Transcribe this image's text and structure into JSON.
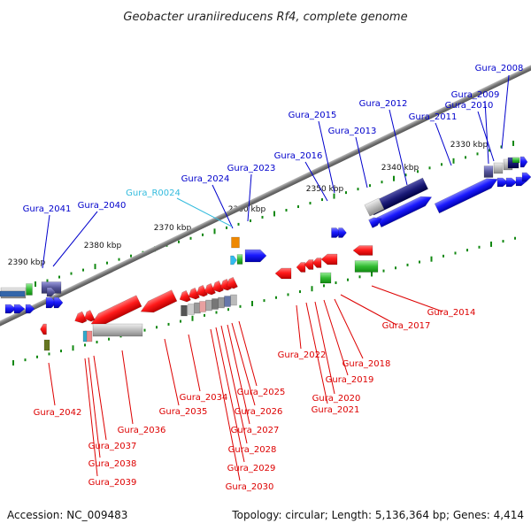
{
  "title": "Geobacter uraniireducens Rf4, complete genome",
  "footer": {
    "accession": "Accession: NC_009483",
    "summary": "Topology: circular; Length: 5,136,364 bp; Genes: 4,414"
  },
  "colors": {
    "forward_label": "#0000cc",
    "reverse_label": "#dd0000",
    "rna_label": "#33bbdd",
    "backbone": "#888888",
    "tick": "#118811"
  },
  "scale_labels": [
    "2330 kbp",
    "2340 kbp",
    "2350 kbp",
    "2360 kbp",
    "2370 kbp",
    "2380 kbp",
    "2390 kbp"
  ],
  "forward_genes": [
    "Gura_2008",
    "Gura_2009",
    "Gura_2010",
    "Gura_2011",
    "Gura_2012",
    "Gura_2013",
    "Gura_2015",
    "Gura_2016",
    "Gura_2023",
    "Gura_2024",
    "Gura_R0024",
    "Gura_2040",
    "Gura_2041"
  ],
  "reverse_genes": [
    "Gura_2014",
    "Gura_2017",
    "Gura_2018",
    "Gura_2019",
    "Gura_2020",
    "Gura_2021",
    "Gura_2022",
    "Gura_2025",
    "Gura_2026",
    "Gura_2027",
    "Gura_2028",
    "Gura_2029",
    "Gura_2030",
    "Gura_2034",
    "Gura_2035",
    "Gura_2036",
    "Gura_2037",
    "Gura_2038",
    "Gura_2039",
    "Gura_2042"
  ]
}
